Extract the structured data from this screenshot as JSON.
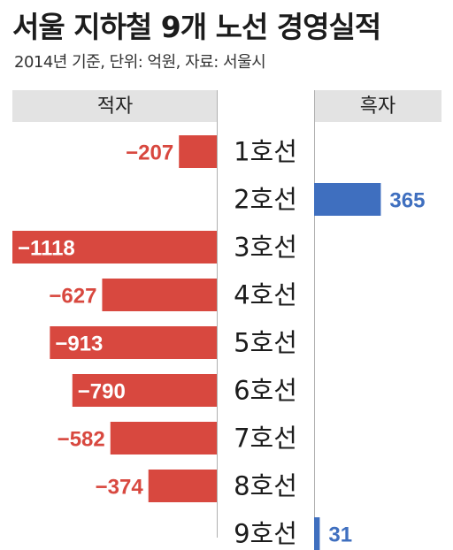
{
  "title": "서울 지하철 9개 노선 경영실적",
  "subtitle": "2014년 기준, 단위: 억원, 자료: 서울시",
  "headers": {
    "negative": "적자",
    "positive": "흑자"
  },
  "colors": {
    "negative": "#d8483f",
    "positive": "#3f6fbf",
    "header_bg": "#e3e3e3"
  },
  "chart_data": {
    "type": "bar",
    "orientation": "horizontal-diverging",
    "title": "서울 지하철 9개 노선 경영실적",
    "subtitle": "2014년 기준, 단위: 억원, 자료: 서울시",
    "categories": [
      "1호선",
      "2호선",
      "3호선",
      "4호선",
      "5호선",
      "6호선",
      "7호선",
      "8호선",
      "9호선"
    ],
    "values": [
      -207,
      365,
      -1118,
      -627,
      -913,
      -790,
      -582,
      -374,
      31
    ],
    "value_labels": [
      "−207",
      "365",
      "−1118",
      "−627",
      "−913",
      "−790",
      "−582",
      "−374",
      "31"
    ],
    "xlim": [
      -1118,
      365
    ],
    "grid": false,
    "legend": "none"
  }
}
